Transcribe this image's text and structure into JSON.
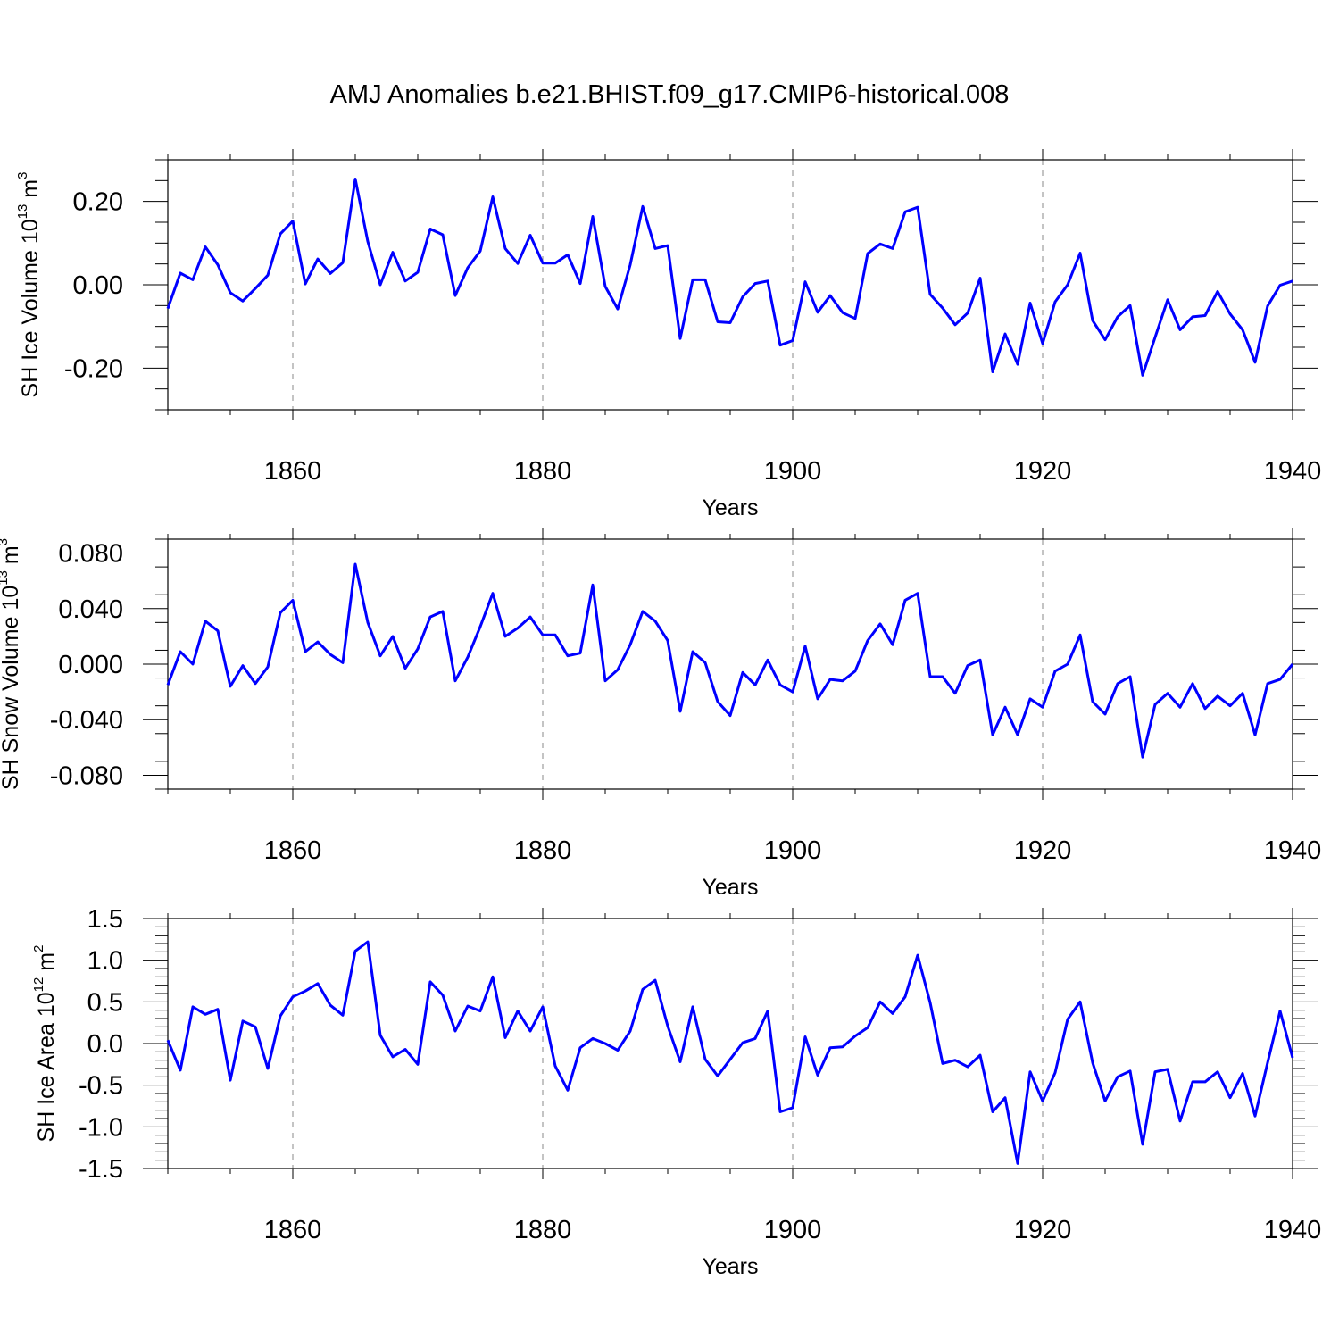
{
  "title": "AMJ Anomalies b.e21.BHIST.f09_g17.CMIP6-historical.008",
  "colors": {
    "series": "#0000ff",
    "axis": "#000000",
    "grid": "#888888"
  },
  "chart_data": [
    {
      "type": "line",
      "id": "ice-volume",
      "ylabel": {
        "prefix": "SH Ice Volume 10",
        "exp": "13",
        "mid": " m",
        "unit_exp": "3"
      },
      "xlabel": "Years",
      "xlim": [
        1850,
        1940
      ],
      "ylim": [
        -0.3,
        0.3
      ],
      "yticks": [
        -0.2,
        0.0,
        0.2
      ],
      "ytick_labels": [
        "-0.20",
        "0.00",
        "0.20"
      ],
      "yminor_step": 0.05,
      "xticks": [
        1860,
        1880,
        1900,
        1920,
        1940
      ],
      "xtick_labels": [
        "1860",
        "1880",
        "1900",
        "1920",
        "1940"
      ],
      "x": [
        1850,
        1851,
        1852,
        1853,
        1854,
        1855,
        1856,
        1857,
        1858,
        1859,
        1860,
        1861,
        1862,
        1863,
        1864,
        1865,
        1866,
        1867,
        1868,
        1869,
        1870,
        1871,
        1872,
        1873,
        1874,
        1875,
        1876,
        1877,
        1878,
        1879,
        1880,
        1881,
        1882,
        1883,
        1884,
        1885,
        1886,
        1887,
        1888,
        1889,
        1890,
        1891,
        1892,
        1893,
        1894,
        1895,
        1896,
        1897,
        1898,
        1899,
        1900,
        1901,
        1902,
        1903,
        1904,
        1905,
        1906,
        1907,
        1908,
        1909,
        1910,
        1911,
        1912,
        1913,
        1914,
        1915,
        1916,
        1917,
        1918,
        1919,
        1920,
        1921,
        1922,
        1923,
        1924,
        1925,
        1926,
        1927,
        1928,
        1929,
        1930,
        1931,
        1932,
        1933,
        1934,
        1935,
        1936,
        1937,
        1938,
        1939,
        1940
      ],
      "values": [
        -0.057,
        0.028,
        0.012,
        0.091,
        0.048,
        -0.019,
        -0.039,
        -0.009,
        0.023,
        0.122,
        0.153,
        0.002,
        0.062,
        0.027,
        0.053,
        0.254,
        0.104,
        0.0,
        0.078,
        0.009,
        0.03,
        0.134,
        0.12,
        -0.026,
        0.041,
        0.081,
        0.211,
        0.087,
        0.051,
        0.119,
        0.052,
        0.052,
        0.072,
        0.003,
        0.164,
        -0.004,
        -0.058,
        0.048,
        0.188,
        0.087,
        0.094,
        -0.129,
        0.012,
        0.012,
        -0.089,
        -0.091,
        -0.029,
        0.003,
        0.009,
        -0.145,
        -0.134,
        0.007,
        -0.066,
        -0.026,
        -0.067,
        -0.081,
        0.075,
        0.098,
        0.087,
        0.175,
        0.186,
        -0.023,
        -0.056,
        -0.096,
        -0.068,
        0.016,
        -0.209,
        -0.118,
        -0.191,
        -0.044,
        -0.141,
        -0.041,
        0.0,
        0.076,
        -0.086,
        -0.132,
        -0.077,
        -0.05,
        -0.217,
        -0.126,
        -0.036,
        -0.108,
        -0.077,
        -0.074,
        -0.016,
        -0.07,
        -0.108,
        -0.186,
        -0.051,
        -0.001,
        0.009
      ]
    },
    {
      "type": "line",
      "id": "snow-volume",
      "ylabel": {
        "prefix": "SH Snow Volume 10",
        "exp": "13",
        "mid": " m",
        "unit_exp": "3"
      },
      "xlabel": "Years",
      "xlim": [
        1850,
        1940
      ],
      "ylim": [
        -0.09,
        0.09
      ],
      "yticks": [
        -0.08,
        -0.04,
        0.0,
        0.04,
        0.08
      ],
      "ytick_labels": [
        "-0.080",
        "-0.040",
        "0.000",
        "0.040",
        "0.080"
      ],
      "yminor_step": 0.02,
      "xticks": [
        1860,
        1880,
        1900,
        1920,
        1940
      ],
      "xtick_labels": [
        "1860",
        "1880",
        "1900",
        "1920",
        "1940"
      ],
      "x": [
        1850,
        1851,
        1852,
        1853,
        1854,
        1855,
        1856,
        1857,
        1858,
        1859,
        1860,
        1861,
        1862,
        1863,
        1864,
        1865,
        1866,
        1867,
        1868,
        1869,
        1870,
        1871,
        1872,
        1873,
        1874,
        1875,
        1876,
        1877,
        1878,
        1879,
        1880,
        1881,
        1882,
        1883,
        1884,
        1885,
        1886,
        1887,
        1888,
        1889,
        1890,
        1891,
        1892,
        1893,
        1894,
        1895,
        1896,
        1897,
        1898,
        1899,
        1900,
        1901,
        1902,
        1903,
        1904,
        1905,
        1906,
        1907,
        1908,
        1909,
        1910,
        1911,
        1912,
        1913,
        1914,
        1915,
        1916,
        1917,
        1918,
        1919,
        1920,
        1921,
        1922,
        1923,
        1924,
        1925,
        1926,
        1927,
        1928,
        1929,
        1930,
        1931,
        1932,
        1933,
        1934,
        1935,
        1936,
        1937,
        1938,
        1939,
        1940
      ],
      "values": [
        -0.015,
        0.009,
        0.0,
        0.031,
        0.024,
        -0.016,
        -0.001,
        -0.014,
        -0.002,
        0.037,
        0.046,
        0.009,
        0.016,
        0.007,
        0.001,
        0.072,
        0.03,
        0.006,
        0.02,
        -0.003,
        0.011,
        0.034,
        0.038,
        -0.012,
        0.005,
        0.027,
        0.051,
        0.02,
        0.026,
        0.034,
        0.021,
        0.021,
        0.006,
        0.008,
        0.057,
        -0.012,
        -0.004,
        0.014,
        0.038,
        0.031,
        0.017,
        -0.034,
        0.009,
        0.001,
        -0.027,
        -0.037,
        -0.006,
        -0.015,
        0.003,
        -0.015,
        -0.02,
        0.013,
        -0.025,
        -0.011,
        -0.012,
        -0.005,
        0.017,
        0.029,
        0.014,
        0.046,
        0.051,
        -0.009,
        -0.009,
        -0.021,
        -0.001,
        0.003,
        -0.051,
        -0.031,
        -0.051,
        -0.025,
        -0.031,
        -0.005,
        0.0,
        0.021,
        -0.027,
        -0.036,
        -0.014,
        -0.009,
        -0.067,
        -0.029,
        -0.021,
        -0.031,
        -0.014,
        -0.032,
        -0.023,
        -0.03,
        -0.021,
        -0.051,
        -0.014,
        -0.011,
        0.0
      ]
    },
    {
      "type": "line",
      "id": "ice-area",
      "ylabel": {
        "prefix": "SH Ice Area 10",
        "exp": "12",
        "mid": " m",
        "unit_exp": "2"
      },
      "xlabel": "Years",
      "xlim": [
        1850,
        1940
      ],
      "ylim": [
        -1.5,
        1.5
      ],
      "yticks": [
        -1.5,
        -1.0,
        -0.5,
        0.0,
        0.5,
        1.0,
        1.5
      ],
      "ytick_labels": [
        "-1.5",
        "-1.0",
        "-0.5",
        "0.0",
        "0.5",
        "1.0",
        "1.5"
      ],
      "yminor_step": 0.1,
      "xticks": [
        1860,
        1880,
        1900,
        1920,
        1940
      ],
      "xtick_labels": [
        "1860",
        "1880",
        "1900",
        "1920",
        "1940"
      ],
      "x": [
        1850,
        1851,
        1852,
        1853,
        1854,
        1855,
        1856,
        1857,
        1858,
        1859,
        1860,
        1861,
        1862,
        1863,
        1864,
        1865,
        1866,
        1867,
        1868,
        1869,
        1870,
        1871,
        1872,
        1873,
        1874,
        1875,
        1876,
        1877,
        1878,
        1879,
        1880,
        1881,
        1882,
        1883,
        1884,
        1885,
        1886,
        1887,
        1888,
        1889,
        1890,
        1891,
        1892,
        1893,
        1894,
        1895,
        1896,
        1897,
        1898,
        1899,
        1900,
        1901,
        1902,
        1903,
        1904,
        1905,
        1906,
        1907,
        1908,
        1909,
        1910,
        1911,
        1912,
        1913,
        1914,
        1915,
        1916,
        1917,
        1918,
        1919,
        1920,
        1921,
        1922,
        1923,
        1924,
        1925,
        1926,
        1927,
        1928,
        1929,
        1930,
        1931,
        1932,
        1933,
        1934,
        1935,
        1936,
        1937,
        1938,
        1939,
        1940
      ],
      "values": [
        0.04,
        -0.32,
        0.44,
        0.35,
        0.41,
        -0.44,
        0.27,
        0.2,
        -0.3,
        0.33,
        0.56,
        0.63,
        0.72,
        0.46,
        0.34,
        1.11,
        1.22,
        0.1,
        -0.16,
        -0.07,
        -0.25,
        0.74,
        0.58,
        0.15,
        0.45,
        0.39,
        0.8,
        0.07,
        0.39,
        0.15,
        0.44,
        -0.27,
        -0.56,
        -0.05,
        0.06,
        0.0,
        -0.08,
        0.15,
        0.65,
        0.76,
        0.21,
        -0.22,
        0.44,
        -0.19,
        -0.39,
        -0.19,
        0.01,
        0.06,
        0.39,
        -0.82,
        -0.77,
        0.08,
        -0.38,
        -0.05,
        -0.04,
        0.09,
        0.19,
        0.5,
        0.36,
        0.56,
        1.06,
        0.49,
        -0.24,
        -0.2,
        -0.28,
        -0.14,
        -0.82,
        -0.65,
        -1.44,
        -0.34,
        -0.69,
        -0.35,
        0.29,
        0.5,
        -0.23,
        -0.69,
        -0.4,
        -0.33,
        -1.21,
        -0.34,
        -0.31,
        -0.93,
        -0.46,
        -0.46,
        -0.34,
        -0.65,
        -0.36,
        -0.87,
        -0.23,
        0.39,
        -0.17
      ]
    }
  ]
}
